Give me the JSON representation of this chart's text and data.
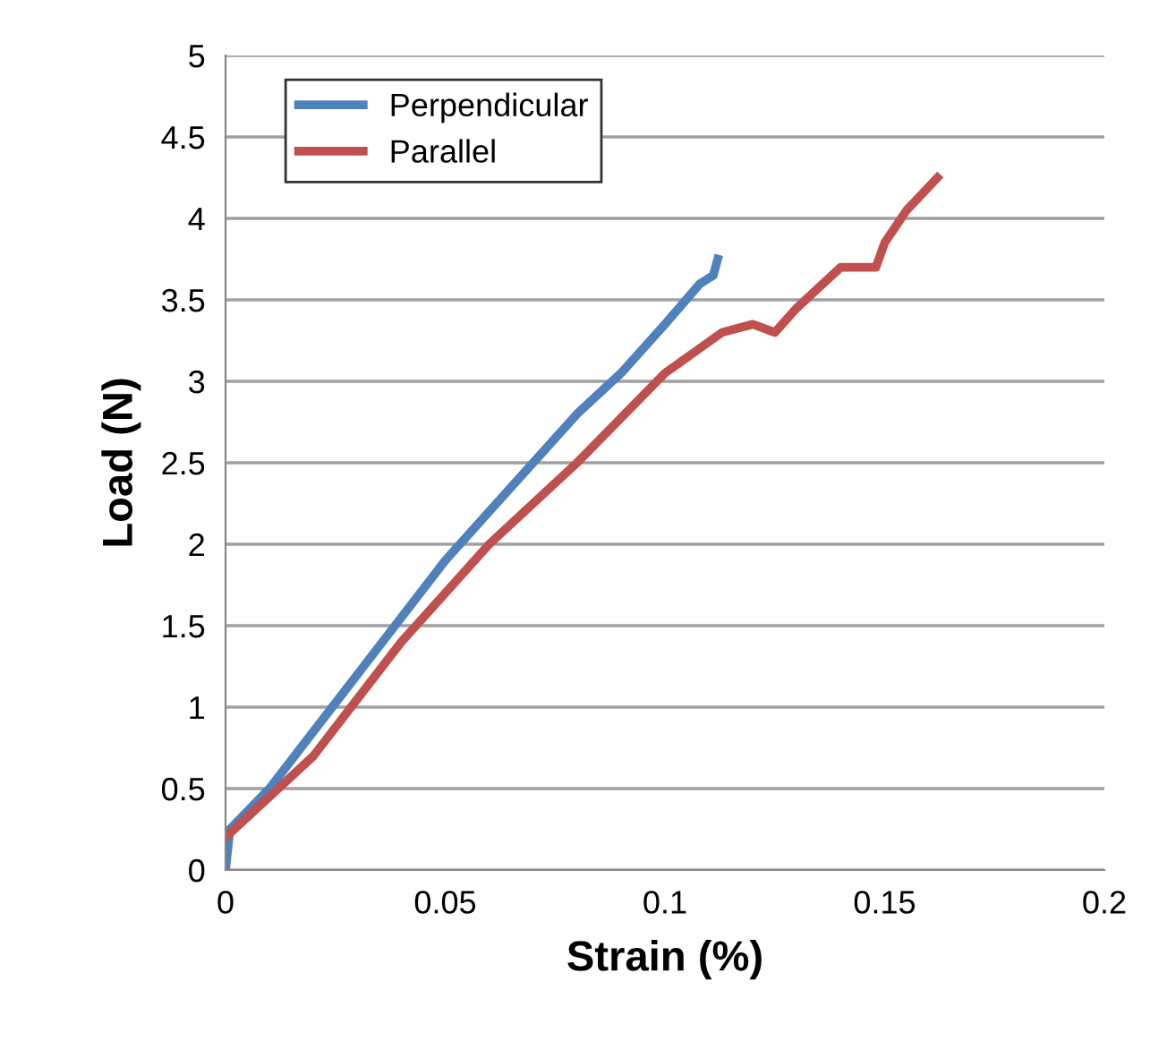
{
  "chart_data": {
    "type": "line",
    "xlabel": "Strain (%)",
    "ylabel": "Load (N)",
    "xlim": [
      0,
      0.2
    ],
    "xticks": [
      0,
      0.05,
      0.1,
      0.15,
      0.2
    ],
    "ylim": [
      0,
      5
    ],
    "yticks": [
      0,
      0.5,
      1,
      1.5,
      2,
      2.5,
      3,
      3.5,
      4,
      4.5,
      5
    ],
    "grid": "y",
    "legend": "top left",
    "line_style": "solid",
    "marker": "none",
    "series": [
      {
        "name": "Perpendicular",
        "color": "#4f81bd",
        "x": [
          0,
          0.001,
          0.01,
          0.02,
          0.03,
          0.04,
          0.05,
          0.06,
          0.07,
          0.08,
          0.09,
          0.1,
          0.108,
          0.111,
          0.112
        ],
        "values": [
          0,
          0.25,
          0.5,
          0.85,
          1.2,
          1.55,
          1.9,
          2.2,
          2.5,
          2.8,
          3.05,
          3.35,
          3.6,
          3.65,
          3.75
        ]
      },
      {
        "name": "Parallel",
        "color": "#c0504d",
        "x": [
          0,
          0.02,
          0.04,
          0.06,
          0.08,
          0.1,
          0.113,
          0.12,
          0.125,
          0.13,
          0.14,
          0.148,
          0.15,
          0.155,
          0.162
        ],
        "values": [
          0.2,
          0.7,
          1.4,
          2.0,
          2.5,
          3.05,
          3.3,
          3.35,
          3.3,
          3.45,
          3.7,
          3.7,
          3.85,
          4.05,
          4.25
        ]
      }
    ]
  }
}
